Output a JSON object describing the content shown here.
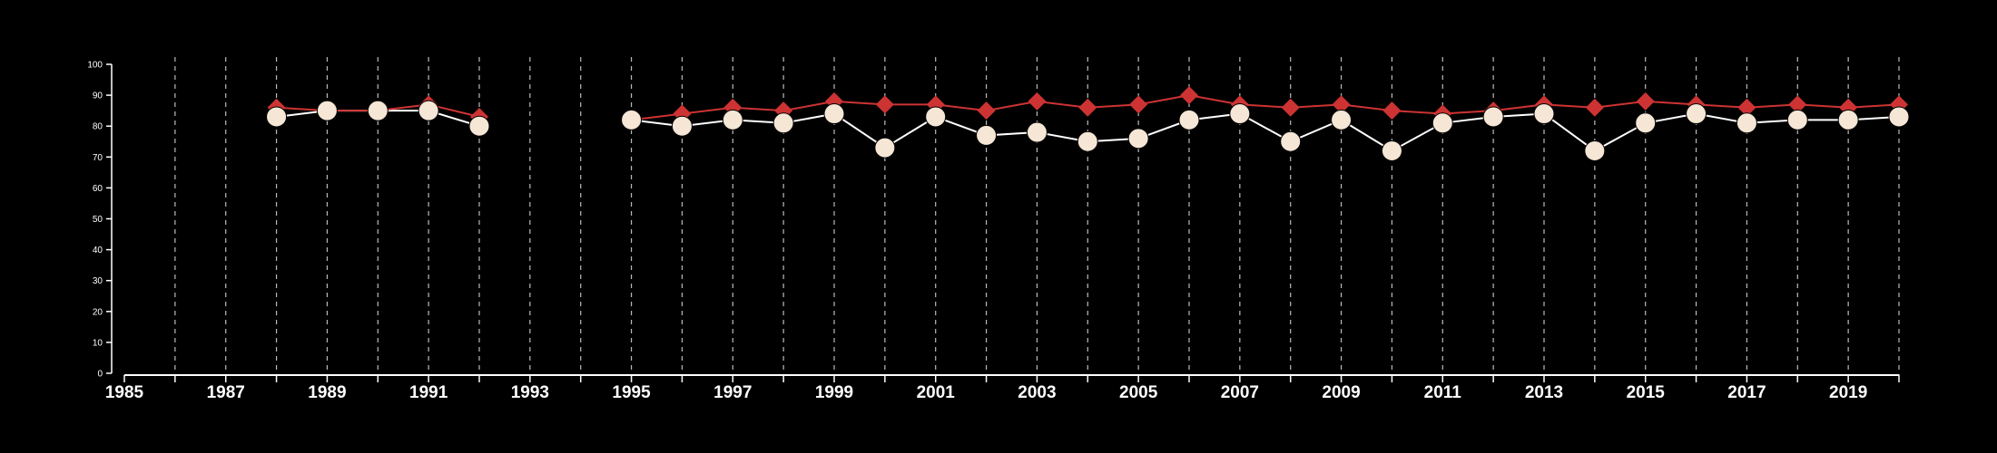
{
  "colors": {
    "background": "#000000",
    "axis": "#ffffff",
    "grid": "#bbbbbb",
    "series_red": "#cd3333",
    "series_white_fill": "#f5e6d6",
    "series_white_line": "#ffffff"
  },
  "chart_data": {
    "type": "line",
    "title": "",
    "xlabel": "",
    "ylabel": "",
    "xlim": [
      1985,
      2020
    ],
    "ylim": [
      0,
      100
    ],
    "y_ticks": [
      0,
      10,
      20,
      30,
      40,
      50,
      60,
      70,
      80,
      90,
      100
    ],
    "x_ticks": [
      1985,
      1986,
      1987,
      1988,
      1989,
      1990,
      1991,
      1992,
      1993,
      1994,
      1995,
      1996,
      1997,
      1998,
      1999,
      2000,
      2001,
      2002,
      2003,
      2004,
      2005,
      2006,
      2007,
      2008,
      2009,
      2010,
      2011,
      2012,
      2013,
      2014,
      2015,
      2016,
      2017,
      2018,
      2019,
      2020
    ],
    "x_tick_labels": [
      "1985",
      "",
      "1987",
      "",
      "1989",
      "",
      "1991",
      "",
      "1993",
      "",
      "1995",
      "",
      "1997",
      "",
      "1999",
      "",
      "2001",
      "",
      "2003",
      "",
      "2005",
      "",
      "2007",
      "",
      "2009",
      "",
      "2011",
      "",
      "2013",
      "",
      "2015",
      "",
      "2017",
      "",
      "2019",
      ""
    ],
    "grid": "vertical dashed",
    "legend": "none",
    "series": [
      {
        "marker": "diamond",
        "color": "#cd3333",
        "segments": [
          {
            "x": [
              1988,
              1989,
              1990,
              1991,
              1992
            ],
            "y": [
              86,
              85,
              85,
              87,
              83
            ]
          },
          {
            "x": [
              1995,
              1996,
              1997,
              1998,
              1999,
              2000,
              2001,
              2002,
              2003,
              2004,
              2005,
              2006,
              2007,
              2008,
              2009,
              2010,
              2011,
              2012,
              2013,
              2014,
              2015,
              2016,
              2017,
              2018,
              2019,
              2020
            ],
            "y": [
              82,
              84,
              86,
              85,
              88,
              87,
              87,
              85,
              88,
              86,
              87,
              90,
              87,
              86,
              87,
              85,
              84,
              85,
              87,
              86,
              88,
              87,
              86,
              87,
              86,
              87
            ]
          }
        ]
      },
      {
        "marker": "circle",
        "color": "#f5e6d6",
        "segments": [
          {
            "x": [
              1988,
              1989,
              1990,
              1991,
              1992
            ],
            "y": [
              83,
              85,
              85,
              85,
              80
            ]
          },
          {
            "x": [
              1995,
              1996,
              1997,
              1998,
              1999,
              2000,
              2001,
              2002,
              2003,
              2004,
              2005,
              2006,
              2007,
              2008,
              2009,
              2010,
              2011,
              2012,
              2013,
              2014,
              2015,
              2016,
              2017,
              2018,
              2019,
              2020
            ],
            "y": [
              82,
              80,
              82,
              81,
              84,
              73,
              83,
              77,
              78,
              75,
              76,
              82,
              84,
              75,
              82,
              72,
              81,
              83,
              84,
              72,
              81,
              84,
              81,
              82,
              82,
              83
            ]
          }
        ]
      }
    ]
  }
}
